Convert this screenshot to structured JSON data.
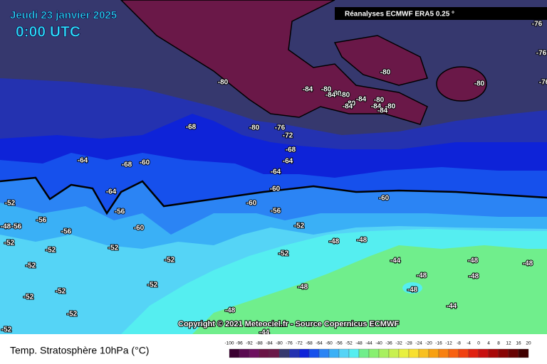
{
  "header": {
    "date": "Jeudi 23 janvier 2025",
    "time": "0:00 UTC",
    "source": "Réanalyses ECMWF ERA5 0.25 °"
  },
  "copyright": "Copyright © 2021 Meteociel.fr - Source Copernicus ECMWF",
  "map_title": "Temp. Stratosphère 10hPa (°C)",
  "contour_labels": [
    -80,
    -84,
    -80,
    -80,
    -80,
    -84,
    -84,
    -80,
    -84,
    -80,
    -84,
    -80,
    -84,
    -80,
    -80,
    -76,
    -76,
    -76,
    -68,
    -80,
    -76,
    -72,
    -68,
    -64,
    -64,
    -64,
    -68,
    -60,
    -64,
    -60,
    -60,
    -60,
    -56,
    -56,
    -60,
    -52,
    -56,
    -48,
    -56,
    -56,
    -52,
    -52,
    -52,
    -52,
    -48,
    -48,
    -52,
    -52,
    -52,
    -44,
    -48,
    -48,
    -48,
    -48,
    -52,
    -52,
    -48,
    -48,
    -52,
    -52,
    -48,
    -44,
    -52,
    -44
  ],
  "legend": {
    "ticks": [
      -100,
      -96,
      -92,
      -88,
      -84,
      -80,
      -76,
      -72,
      -68,
      -64,
      -60,
      -56,
      -52,
      -48,
      -44,
      -40,
      -36,
      -32,
      -28,
      -24,
      -20,
      -16,
      -12,
      -8,
      -4,
      0,
      4,
      8,
      12,
      16,
      20
    ],
    "colors": [
      "#3a0030",
      "#5a0a50",
      "#6e1060",
      "#6a1445",
      "#6a1848",
      "#36386e",
      "#2432b0",
      "#0e23d8",
      "#1650ec",
      "#2b84f4",
      "#3ab0f6",
      "#55d4f6",
      "#55eef0",
      "#70ee8c",
      "#88f070",
      "#a8f060",
      "#c8f050",
      "#e8f040",
      "#f8e030",
      "#f8c020",
      "#f8a010",
      "#f88010",
      "#f86010",
      "#f04010",
      "#e02010",
      "#c81010",
      "#a80808",
      "#880404",
      "#680202",
      "#400000"
    ]
  }
}
